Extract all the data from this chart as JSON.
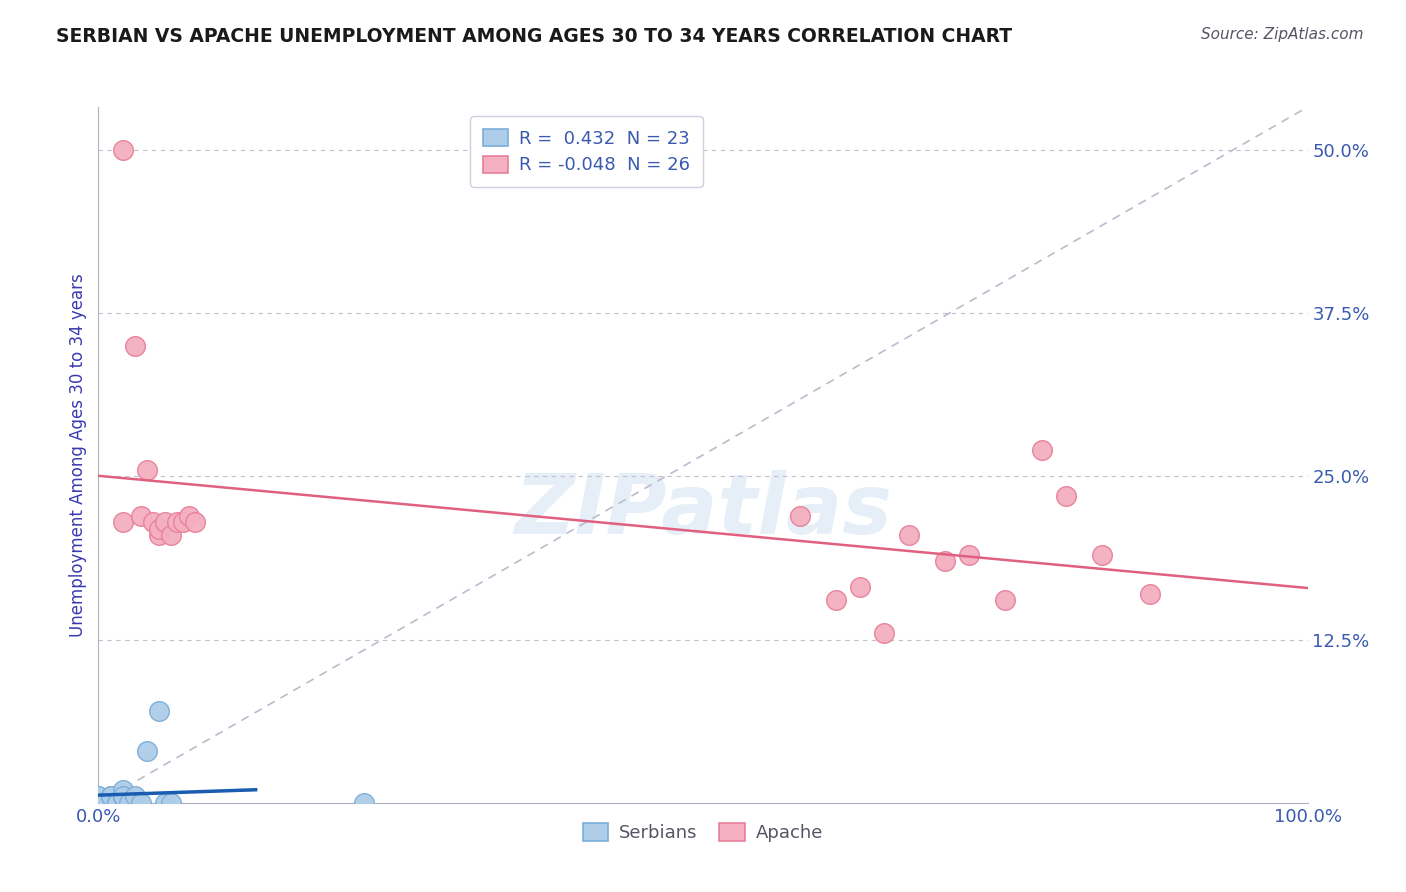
{
  "title": "SERBIAN VS APACHE UNEMPLOYMENT AMONG AGES 30 TO 34 YEARS CORRELATION CHART",
  "source": "Source: ZipAtlas.com",
  "ylabel": "Unemployment Among Ages 30 to 34 years",
  "xlim": [
    0.0,
    1.0
  ],
  "ylim": [
    0.0,
    0.533
  ],
  "yticks": [
    0.0,
    0.125,
    0.25,
    0.375,
    0.5
  ],
  "ytick_labels": [
    "",
    "12.5%",
    "25.0%",
    "37.5%",
    "50.0%"
  ],
  "serbian_x": [
    0.0,
    0.0,
    0.0,
    0.0,
    0.0,
    0.0,
    0.005,
    0.005,
    0.01,
    0.01,
    0.015,
    0.015,
    0.02,
    0.02,
    0.02,
    0.025,
    0.03,
    0.035,
    0.04,
    0.05,
    0.055,
    0.06,
    0.22
  ],
  "serbian_y": [
    0.0,
    0.0,
    0.0,
    0.0,
    0.005,
    0.005,
    0.0,
    0.0,
    0.005,
    0.005,
    0.0,
    0.0,
    0.005,
    0.01,
    0.005,
    0.0,
    0.005,
    0.0,
    0.04,
    0.07,
    0.0,
    0.0,
    0.0
  ],
  "apache_x": [
    0.02,
    0.02,
    0.03,
    0.035,
    0.04,
    0.045,
    0.05,
    0.05,
    0.055,
    0.06,
    0.065,
    0.07,
    0.075,
    0.08,
    0.58,
    0.61,
    0.63,
    0.65,
    0.67,
    0.7,
    0.72,
    0.75,
    0.78,
    0.8,
    0.83,
    0.87
  ],
  "apache_y": [
    0.5,
    0.215,
    0.35,
    0.22,
    0.255,
    0.215,
    0.205,
    0.21,
    0.215,
    0.205,
    0.215,
    0.215,
    0.22,
    0.215,
    0.22,
    0.155,
    0.165,
    0.13,
    0.205,
    0.185,
    0.19,
    0.155,
    0.27,
    0.235,
    0.19,
    0.16
  ],
  "serbian_color": "#aecde8",
  "apache_color": "#f4afc0",
  "serbian_edge": "#7aaed8",
  "apache_edge": "#e8809a",
  "regression_serbian_color": "#1a5cb0",
  "regression_apache_color": "#e06080",
  "diagonal_color": "#bbbbcc",
  "watermark": "ZIPatlas",
  "legend_r_serbian": " 0.432",
  "legend_n_serbian": "23",
  "legend_r_apache": "-0.048",
  "legend_n_apache": "26",
  "background_color": "#ffffff",
  "grid_color": "#c0c0d0",
  "title_color": "#1a1a1a",
  "axis_label_color": "#3a3ab0",
  "tick_label_color": "#3a5ab0"
}
